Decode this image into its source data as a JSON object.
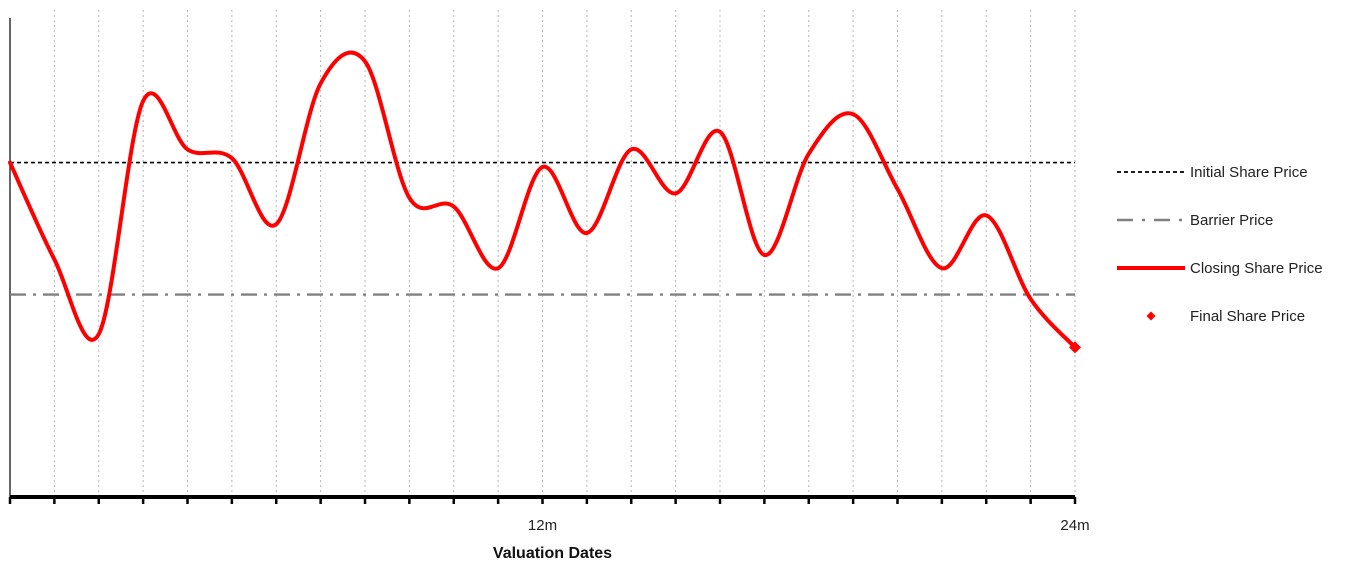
{
  "chart_data": {
    "type": "line",
    "title": "",
    "xlabel": "Valuation Dates",
    "ylabel": "",
    "xlim": [
      0,
      24
    ],
    "ylim": [
      0,
      100
    ],
    "x_tick_labels": [
      {
        "x": 12,
        "label": "12m"
      },
      {
        "x": 24,
        "label": "24m"
      }
    ],
    "grid": "vertical-dotted",
    "legend_position": "right",
    "reference_lines": [
      {
        "name": "Initial Share Price",
        "y": 76,
        "style": "dashed",
        "color": "#000000"
      },
      {
        "name": "Barrier Price",
        "y": 46,
        "style": "dash-dot",
        "color": "#808080"
      }
    ],
    "series": [
      {
        "name": "Closing Share Price",
        "color": "#ff0000",
        "x": [
          0,
          1,
          2,
          3,
          4,
          5,
          6,
          7,
          8,
          9,
          10,
          11,
          12,
          13,
          14,
          15,
          16,
          17,
          18,
          19,
          20,
          21,
          22,
          23,
          24
        ],
        "values": [
          76,
          54,
          37,
          90,
          79,
          77,
          62,
          94,
          99,
          68,
          66,
          52,
          75,
          60,
          79,
          69,
          83,
          55,
          78,
          87,
          70,
          52,
          64,
          45,
          34
        ]
      }
    ],
    "markers": [
      {
        "name": "Final Share Price",
        "x": 24,
        "y": 34,
        "shape": "diamond",
        "color": "#ff0000"
      }
    ]
  }
}
